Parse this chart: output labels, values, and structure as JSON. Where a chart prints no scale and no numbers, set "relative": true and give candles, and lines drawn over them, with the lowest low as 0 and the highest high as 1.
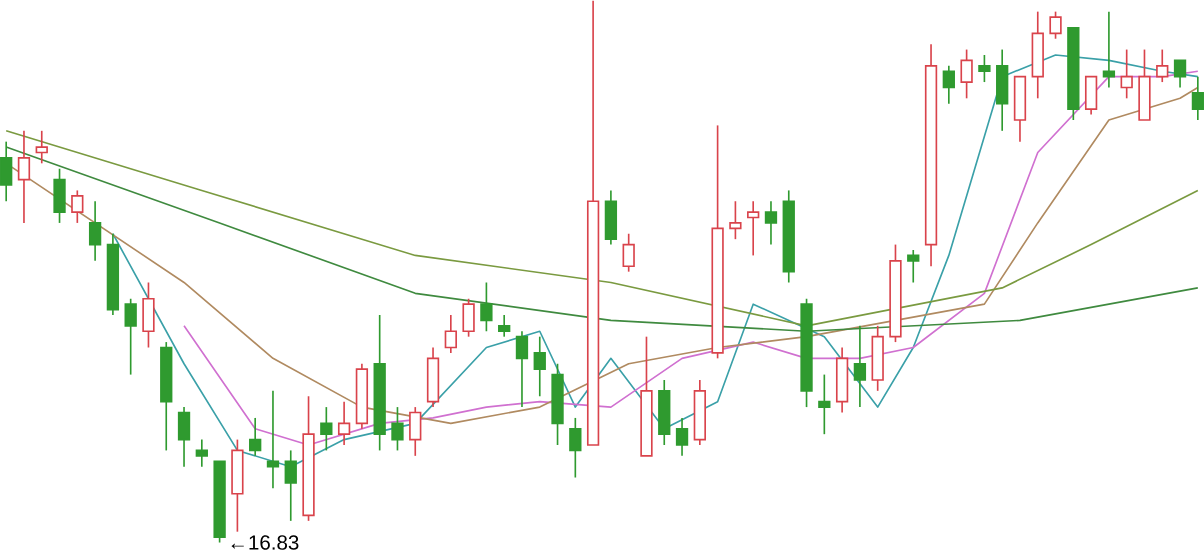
{
  "chart_data": {
    "type": "candlestick",
    "relative": true,
    "categories": [
      null,
      null,
      null,
      null,
      null,
      null,
      null,
      null,
      null,
      null,
      null,
      null,
      null,
      null,
      null,
      null,
      null,
      null,
      null,
      null,
      null,
      null,
      null,
      null,
      null,
      null,
      null,
      null,
      null,
      null,
      null,
      null,
      null,
      null,
      null,
      null,
      null,
      null,
      null,
      null,
      null,
      null,
      null,
      null,
      null,
      null,
      null,
      null,
      null,
      null,
      null,
      null,
      null,
      null,
      null,
      null,
      null,
      null,
      null,
      null,
      null,
      null,
      null,
      null,
      null,
      null,
      null,
      null
    ],
    "ohlc": [
      [
        0.71,
        0.74,
        0.63,
        0.66
      ],
      [
        0.67,
        0.76,
        0.59,
        0.71
      ],
      [
        0.72,
        0.76,
        0.7,
        0.73
      ],
      [
        0.67,
        0.69,
        0.59,
        0.61
      ],
      [
        0.61,
        0.65,
        0.59,
        0.64
      ],
      [
        0.59,
        0.63,
        0.52,
        0.55
      ],
      [
        0.55,
        0.57,
        0.42,
        0.43
      ],
      [
        0.44,
        0.45,
        0.31,
        0.4
      ],
      [
        0.39,
        0.48,
        0.36,
        0.45
      ],
      [
        0.36,
        0.37,
        0.17,
        0.26
      ],
      [
        0.24,
        0.25,
        0.14,
        0.19
      ],
      [
        0.17,
        0.19,
        0.14,
        0.16
      ],
      [
        0.15,
        0.15,
        0,
        0.01
      ],
      [
        0.09,
        0.19,
        0.02,
        0.17
      ],
      [
        0.19,
        0.23,
        0.16,
        0.17
      ],
      [
        0.15,
        0.28,
        0.1,
        0.14
      ],
      [
        0.15,
        0.17,
        0.04,
        0.11
      ],
      [
        0.05,
        0.27,
        0.04,
        0.2
      ],
      [
        0.22,
        0.25,
        0.17,
        0.2
      ],
      [
        0.2,
        0.26,
        0.18,
        0.22
      ],
      [
        0.22,
        0.33,
        0.21,
        0.32
      ],
      [
        0.33,
        0.42,
        0.17,
        0.2
      ],
      [
        0.22,
        0.25,
        0.17,
        0.19
      ],
      [
        0.19,
        0.25,
        0.16,
        0.24
      ],
      [
        0.26,
        0.36,
        0.25,
        0.34
      ],
      [
        0.36,
        0.42,
        0.35,
        0.39
      ],
      [
        0.39,
        0.45,
        0.38,
        0.44
      ],
      [
        0.44,
        0.48,
        0.39,
        0.41
      ],
      [
        0.4,
        0.42,
        0.38,
        0.39
      ],
      [
        0.38,
        0.39,
        0.25,
        0.34
      ],
      [
        0.35,
        0.38,
        0.27,
        0.32
      ],
      [
        0.31,
        0.33,
        0.18,
        0.22
      ],
      [
        0.21,
        0.23,
        0.12,
        0.17
      ],
      [
        0.18,
        1.0,
        0.18,
        0.63
      ],
      [
        0.63,
        0.65,
        0.55,
        0.56
      ],
      [
        0.51,
        0.57,
        0.5,
        0.55
      ],
      [
        0.16,
        0.38,
        0.16,
        0.28
      ],
      [
        0.28,
        0.3,
        0.18,
        0.2
      ],
      [
        0.21,
        0.23,
        0.16,
        0.18
      ],
      [
        0.19,
        0.3,
        0.18,
        0.28
      ],
      [
        0.35,
        0.77,
        0.34,
        0.58
      ],
      [
        0.58,
        0.63,
        0.56,
        0.59
      ],
      [
        0.6,
        0.63,
        0.53,
        0.61
      ],
      [
        0.61,
        0.63,
        0.55,
        0.59
      ],
      [
        0.63,
        0.65,
        0.48,
        0.5
      ],
      [
        0.44,
        0.45,
        0.25,
        0.28
      ],
      [
        0.26,
        0.31,
        0.2,
        0.25
      ],
      [
        0.26,
        0.36,
        0.24,
        0.34
      ],
      [
        0.33,
        0.4,
        0.25,
        0.3
      ],
      [
        0.3,
        0.4,
        0.28,
        0.38
      ],
      [
        0.38,
        0.55,
        0.37,
        0.52
      ],
      [
        0.53,
        0.54,
        0.48,
        0.52
      ],
      [
        0.55,
        0.92,
        0.51,
        0.88
      ],
      [
        0.87,
        0.88,
        0.81,
        0.84
      ],
      [
        0.85,
        0.91,
        0.82,
        0.89
      ],
      [
        0.88,
        0.9,
        0.85,
        0.87
      ],
      [
        0.88,
        0.91,
        0.76,
        0.81
      ],
      [
        0.78,
        0.86,
        0.74,
        0.86
      ],
      [
        0.86,
        0.98,
        0.82,
        0.94
      ],
      [
        0.94,
        0.98,
        0.93,
        0.97
      ],
      [
        0.95,
        0.95,
        0.78,
        0.8
      ],
      [
        0.8,
        0.86,
        0.79,
        0.86
      ],
      [
        0.87,
        0.98,
        0.84,
        0.86
      ],
      [
        0.84,
        0.91,
        0.82,
        0.86
      ],
      [
        0.78,
        0.91,
        0.78,
        0.86
      ],
      [
        0.86,
        0.91,
        0.85,
        0.88
      ],
      [
        0.89,
        0.89,
        0.84,
        0.86
      ],
      [
        0.83,
        0.86,
        0.78,
        0.8
      ]
    ],
    "colors": [
      "#2f9a2f",
      "#d9434b",
      "#d9434b",
      "#2f9a2f",
      "#d9434b",
      "#2f9a2f",
      "#2f9a2f",
      "#2f9a2f",
      "#d9434b",
      "#2f9a2f",
      "#2f9a2f",
      "#2f9a2f",
      "#2f9a2f",
      "#d9434b",
      "#2f9a2f",
      "#2f9a2f",
      "#2f9a2f",
      "#d9434b",
      "#2f9a2f",
      "#d9434b",
      "#d9434b",
      "#2f9a2f",
      "#2f9a2f",
      "#d9434b",
      "#d9434b",
      "#d9434b",
      "#d9434b",
      "#2f9a2f",
      "#2f9a2f",
      "#2f9a2f",
      "#2f9a2f",
      "#2f9a2f",
      "#2f9a2f",
      "#d9434b",
      "#2f9a2f",
      "#d9434b",
      "#d9434b",
      "#2f9a2f",
      "#2f9a2f",
      "#d9434b",
      "#d9434b",
      "#d9434b",
      "#d9434b",
      "#2f9a2f",
      "#2f9a2f",
      "#2f9a2f",
      "#2f9a2f",
      "#d9434b",
      "#2f9a2f",
      "#d9434b",
      "#d9434b",
      "#2f9a2f",
      "#d9434b",
      "#2f9a2f",
      "#d9434b",
      "#2f9a2f",
      "#2f9a2f",
      "#d9434b",
      "#d9434b",
      "#d9434b",
      "#2f9a2f",
      "#d9434b",
      "#2f9a2f",
      "#d9434b",
      "#d9434b",
      "#d9434b",
      "#2f9a2f",
      "#2f9a2f"
    ],
    "series": [
      {
        "type": "line",
        "color": "#3aa0a8",
        "values": [
          null,
          null,
          null,
          null,
          null,
          null,
          0.57,
          null,
          null,
          null,
          0.33,
          null,
          null,
          0.17,
          null,
          null,
          0.14,
          null,
          null,
          0.19,
          null,
          null,
          null,
          0.22,
          null,
          null,
          null,
          0.36,
          null,
          null,
          0.39,
          null,
          0.25,
          null,
          0.34,
          null,
          null,
          0.21,
          null,
          null,
          0.26,
          null,
          0.44,
          null,
          null,
          null,
          0.38,
          null,
          null,
          0.25,
          null,
          0.36,
          null,
          0.53,
          null,
          null,
          0.86,
          null,
          null,
          0.9,
          null,
          null,
          0.89,
          null,
          null,
          0.87,
          null,
          0.86
        ]
      },
      {
        "type": "line",
        "color": "#d070d0",
        "values": [
          null,
          null,
          null,
          null,
          null,
          null,
          null,
          null,
          null,
          null,
          0.4,
          null,
          null,
          null,
          0.21,
          null,
          null,
          0.18,
          null,
          null,
          null,
          0.22,
          null,
          null,
          0.23,
          null,
          null,
          0.25,
          null,
          null,
          0.26,
          null,
          null,
          null,
          0.25,
          null,
          null,
          null,
          0.34,
          null,
          null,
          null,
          0.37,
          null,
          null,
          0.34,
          null,
          null,
          0.34,
          null,
          null,
          0.36,
          null,
          null,
          null,
          0.46,
          null,
          null,
          0.72,
          null,
          null,
          null,
          0.86,
          null,
          null,
          0.86,
          null,
          0.87
        ]
      },
      {
        "type": "line",
        "color": "#b08a60",
        "values": [
          0.7,
          null,
          null,
          null,
          null,
          null,
          null,
          null,
          null,
          null,
          0.48,
          null,
          null,
          null,
          null,
          0.34,
          null,
          null,
          null,
          null,
          0.25,
          null,
          null,
          null,
          null,
          0.22,
          null,
          null,
          null,
          null,
          0.25,
          null,
          null,
          null,
          null,
          0.33,
          null,
          null,
          null,
          null,
          0.36,
          null,
          null,
          null,
          null,
          0.38,
          null,
          null,
          null,
          null,
          0.41,
          null,
          null,
          null,
          null,
          0.44,
          null,
          null,
          0.59,
          null,
          null,
          null,
          0.78,
          null,
          null,
          null,
          0.82,
          0.84
        ]
      },
      {
        "type": "line",
        "color": "#7a9a40",
        "values": [
          0.76,
          null,
          null,
          null,
          null,
          null,
          null,
          null,
          null,
          null,
          null,
          0.65,
          null,
          null,
          null,
          null,
          null,
          null,
          null,
          null,
          null,
          null,
          null,
          0.53,
          null,
          null,
          null,
          null,
          null,
          null,
          null,
          null,
          null,
          null,
          0.48,
          null,
          null,
          null,
          null,
          null,
          null,
          null,
          null,
          null,
          null,
          0.4,
          null,
          null,
          null,
          null,
          null,
          null,
          null,
          null,
          null,
          null,
          0.47,
          null,
          null,
          null,
          null,
          0.55,
          null,
          null,
          null,
          null,
          null,
          0.65
        ]
      },
      {
        "type": "line",
        "color": "#3f8a3f",
        "values": [
          0.73,
          null,
          null,
          null,
          null,
          null,
          null,
          null,
          null,
          null,
          null,
          null,
          0.59,
          null,
          null,
          null,
          null,
          null,
          null,
          null,
          null,
          null,
          null,
          0.46,
          null,
          null,
          null,
          null,
          null,
          null,
          null,
          null,
          null,
          null,
          0.41,
          null,
          null,
          null,
          null,
          null,
          null,
          null,
          null,
          null,
          null,
          0.39,
          null,
          null,
          null,
          null,
          null,
          null,
          null,
          null,
          null,
          null,
          null,
          0.41,
          null,
          null,
          null,
          null,
          null,
          null,
          null,
          null,
          null,
          0.47
        ]
      }
    ],
    "annotations": [
      "←16.83"
    ]
  }
}
